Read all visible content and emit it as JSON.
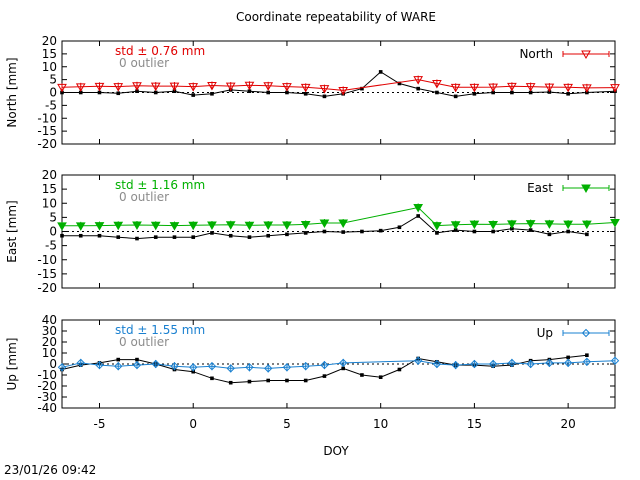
{
  "title": "Coordinate repeatability of WARE",
  "timestamp": "23/01/26 09:42",
  "colors": {
    "north": "#e00000",
    "east": "#00b000",
    "up": "#1a80d0",
    "outlier": "#8c8c8c",
    "residual": "#000000"
  },
  "chart_data": [
    {
      "type": "line",
      "component": "North",
      "ylabel": "North [mm]",
      "xlabel": "",
      "xlim": [
        -7,
        22.5
      ],
      "ylim": [
        -20,
        20
      ],
      "yticks": [
        -20,
        -15,
        -10,
        -5,
        0,
        5,
        10,
        15,
        20
      ],
      "std_label": "std ± 0.76 mm",
      "outlier_label": "0 outlier",
      "legend": "North",
      "legend_position": "top-right",
      "marker": "open-down-triangle",
      "series": [
        {
          "name": "North",
          "x": [
            -7,
            -6,
            -5,
            -4,
            -3,
            -2,
            -1,
            0,
            1,
            2,
            3,
            4,
            5,
            6,
            7,
            8,
            12,
            13,
            14,
            15,
            16,
            17,
            18,
            19,
            20,
            21,
            22.5
          ],
          "values": [
            2,
            2.2,
            2.4,
            2.3,
            2.6,
            2.5,
            2.5,
            2.3,
            2.7,
            2.5,
            2.8,
            2.6,
            2.3,
            2,
            1.5,
            0.8,
            5,
            3.5,
            2,
            2,
            2.1,
            2.4,
            2.3,
            2.1,
            2,
            1.8,
            1.9
          ]
        },
        {
          "name": "residual",
          "x": [
            -7,
            -6,
            -5,
            -4,
            -3,
            -2,
            -1,
            0,
            1,
            2,
            3,
            4,
            5,
            6,
            7,
            8,
            9,
            10,
            11,
            12,
            13,
            14,
            15,
            16,
            17,
            18,
            19,
            20,
            21,
            22.5
          ],
          "values": [
            0,
            0,
            0,
            -0.3,
            0.5,
            0,
            0.5,
            -1,
            -0.5,
            1,
            0.5,
            0,
            0,
            -0.5,
            -1.5,
            -0.5,
            1.5,
            8,
            3.5,
            1.5,
            0,
            -1.5,
            -0.5,
            0,
            0,
            0,
            0.2,
            -0.5,
            0,
            0.5
          ]
        }
      ]
    },
    {
      "type": "line",
      "component": "East",
      "ylabel": "East [mm]",
      "xlabel": "",
      "xlim": [
        -7,
        22.5
      ],
      "ylim": [
        -20,
        20
      ],
      "yticks": [
        -20,
        -15,
        -10,
        -5,
        0,
        5,
        10,
        15,
        20
      ],
      "std_label": "std ± 1.16 mm",
      "outlier_label": "0 outlier",
      "legend": "East",
      "legend_position": "top-right",
      "marker": "filled-down-triangle",
      "series": [
        {
          "name": "East",
          "x": [
            -7,
            -6,
            -5,
            -4,
            -3,
            -2,
            -1,
            0,
            1,
            2,
            3,
            4,
            5,
            6,
            7,
            8,
            12,
            13,
            14,
            15,
            16,
            17,
            18,
            19,
            20,
            21,
            22.5
          ],
          "values": [
            2,
            2,
            2.1,
            2.2,
            2.3,
            2.2,
            2.1,
            2.2,
            2.3,
            2.4,
            2.2,
            2.3,
            2.3,
            2.5,
            3,
            3,
            8.5,
            2.1,
            2.4,
            2.6,
            2.5,
            2.7,
            2.8,
            2.7,
            2.6,
            2.6,
            3.2
          ]
        },
        {
          "name": "residual",
          "x": [
            -7,
            -6,
            -5,
            -4,
            -3,
            -2,
            -1,
            0,
            1,
            2,
            3,
            4,
            5,
            6,
            7,
            8,
            9,
            10,
            11,
            12,
            13,
            14,
            15,
            16,
            17,
            18,
            19,
            20,
            21
          ],
          "values": [
            -1.5,
            -1.5,
            -1.5,
            -2,
            -2.5,
            -2,
            -2,
            -2,
            -0.5,
            -1.5,
            -2,
            -1.5,
            -1,
            -0.5,
            0,
            -0.2,
            0,
            0.3,
            1.5,
            5.5,
            -0.5,
            0.5,
            0,
            0,
            1,
            0.5,
            -1,
            0,
            -1
          ]
        }
      ]
    },
    {
      "type": "line",
      "component": "Up",
      "ylabel": "Up [mm]",
      "xlabel": "DOY",
      "xlim": [
        -7,
        22.5
      ],
      "ylim": [
        -40,
        40
      ],
      "yticks": [
        -40,
        -30,
        -20,
        -10,
        0,
        10,
        20,
        30,
        40
      ],
      "xticks": [
        -5,
        0,
        5,
        10,
        15,
        20
      ],
      "std_label": "std ± 1.55 mm",
      "outlier_label": "0 outlier",
      "legend": "Up",
      "legend_position": "top-right",
      "marker": "open-diamond",
      "series": [
        {
          "name": "Up",
          "x": [
            -7,
            -6,
            -5,
            -4,
            -3,
            -2,
            -1,
            0,
            1,
            2,
            3,
            4,
            5,
            6,
            7,
            8,
            12,
            13,
            14,
            15,
            16,
            17,
            18,
            19,
            20,
            21,
            22.5
          ],
          "values": [
            -3,
            1,
            -1,
            -2,
            -1,
            0,
            -2,
            -3,
            -2,
            -4,
            -3,
            -4,
            -3,
            -2,
            -1,
            1,
            3,
            0,
            -1,
            0,
            0,
            1,
            0,
            1,
            1,
            2,
            3
          ]
        },
        {
          "name": "residual",
          "x": [
            -7,
            -6,
            -5,
            -4,
            -3,
            -2,
            -1,
            0,
            1,
            2,
            3,
            4,
            5,
            6,
            7,
            8,
            9,
            10,
            11,
            12,
            13,
            14,
            15,
            16,
            17,
            18,
            19,
            20,
            21
          ],
          "values": [
            -5,
            -1,
            1,
            4,
            4,
            0,
            -5,
            -7,
            -13,
            -17,
            -16,
            -15,
            -15,
            -15,
            -11,
            -4,
            -10,
            -12,
            -5,
            5,
            2,
            -1,
            -1,
            -2,
            -1,
            3,
            4,
            6,
            8
          ]
        }
      ]
    }
  ]
}
